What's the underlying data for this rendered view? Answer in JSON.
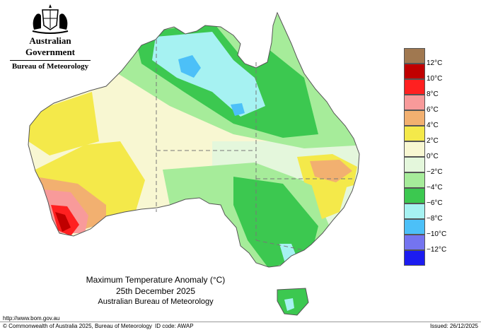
{
  "header": {
    "government": "Australian Government",
    "bureau": "Bureau of Meteorology"
  },
  "legend": {
    "items": [
      {
        "label": "",
        "color": "#a07850"
      },
      {
        "label": "12°C",
        "color": "#c00000"
      },
      {
        "label": "10°C",
        "color": "#ff2020"
      },
      {
        "label": "8°C",
        "color": "#f89a9a"
      },
      {
        "label": "6°C",
        "color": "#f2b070"
      },
      {
        "label": "4°C",
        "color": "#f4e94a"
      },
      {
        "label": "2°C",
        "color": "#f8f7d2"
      },
      {
        "label": "0°C",
        "color": "#e4f7dc"
      },
      {
        "label": "−2°C",
        "color": "#a6ec9a"
      },
      {
        "label": "−4°C",
        "color": "#3cc850"
      },
      {
        "label": "−6°C",
        "color": "#a6f2f2"
      },
      {
        "label": "−8°C",
        "color": "#4cc0f8"
      },
      {
        "label": "−10°C",
        "color": "#7474f0"
      },
      {
        "label": "−12°C",
        "color": "#1c1cf0"
      }
    ]
  },
  "title": {
    "line1": "Maximum Temperature Anomaly (°C)",
    "line2": "25th December 2025",
    "line3": "Australian Bureau of Meteorology"
  },
  "footer": {
    "url": "http://www.bom.gov.au",
    "copyright": "© Commonwealth of Australia 2025, Bureau of Meteorology",
    "id_code": "ID code: AWAP",
    "issued": "Issued: 26/12/2025"
  },
  "colors": {
    "state_border": "#777777",
    "contour": "#000000"
  }
}
